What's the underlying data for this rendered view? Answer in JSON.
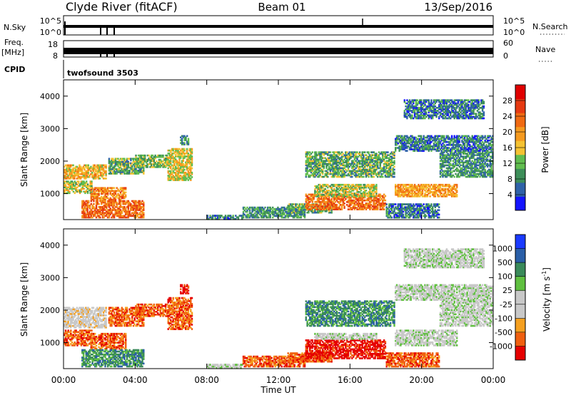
{
  "header": {
    "station": "Clyde River (fitACF)",
    "beam": "Beam 01",
    "date": "13/Sep/2016"
  },
  "colors": {
    "power_scale": [
      "#1414ff",
      "#2f62a8",
      "#3d8e59",
      "#61bd4f",
      "#f5c232",
      "#f59a1f",
      "#f06a12",
      "#e63a12",
      "#e00000"
    ],
    "velocity_scale": [
      "#e60000",
      "#f06010",
      "#f5a020",
      "#c8c8c8",
      "#c8c8c8",
      "#60c040",
      "#3a8a5a",
      "#2a5fa8",
      "#1a3aff"
    ]
  },
  "chart_data": [
    {
      "type": "line",
      "panel": "nsky-nsearch",
      "left_label": "N.Sky",
      "right_label": "N.Search",
      "left_ticks": [
        "10^5",
        "10^0"
      ],
      "right_ticks": [
        "10^5",
        "10^0"
      ]
    },
    {
      "type": "line",
      "panel": "freq-nave",
      "left_label": "Freq.",
      "left_unit": "[MHz]",
      "right_label": "Nave",
      "left_ticks": [
        "18",
        "8"
      ],
      "right_ticks": [
        "60",
        "0"
      ]
    },
    {
      "type": "table",
      "panel": "cpid",
      "label": "CPID",
      "value": "twofsound 3503"
    },
    {
      "type": "heatmap",
      "panel": "power",
      "ylabel": "Slant Range [km]",
      "ylim": [
        200,
        4500
      ],
      "yticks": [
        "1000",
        "2000",
        "3000",
        "4000"
      ],
      "xlim_hours": [
        0,
        24
      ],
      "colorbar_label": "Power [dB]",
      "colorbar_ticks": [
        "28",
        "24",
        "20",
        "16",
        "12",
        "8",
        "4"
      ],
      "clim": [
        0,
        32
      ],
      "echo_regions": [
        {
          "t": [
            0.0,
            2.4
          ],
          "r": [
            1450,
            1900
          ],
          "v": 18
        },
        {
          "t": [
            0.0,
            1.6
          ],
          "r": [
            1000,
            1400
          ],
          "v": 14
        },
        {
          "t": [
            1.5,
            3.5
          ],
          "r": [
            800,
            1200
          ],
          "v": 22
        },
        {
          "t": [
            1.0,
            4.5
          ],
          "r": [
            250,
            800
          ],
          "v": 24
        },
        {
          "t": [
            2.5,
            4.5
          ],
          "r": [
            1600,
            2100
          ],
          "v": 10
        },
        {
          "t": [
            4.0,
            5.8
          ],
          "r": [
            1800,
            2200
          ],
          "v": 12
        },
        {
          "t": [
            5.8,
            7.2
          ],
          "r": [
            1400,
            2400
          ],
          "v": 16
        },
        {
          "t": [
            6.5,
            7.0
          ],
          "r": [
            2500,
            2800
          ],
          "v": 8
        },
        {
          "t": [
            8.0,
            10.0
          ],
          "r": [
            200,
            350
          ],
          "v": 6
        },
        {
          "t": [
            10.0,
            13.5
          ],
          "r": [
            250,
            600
          ],
          "v": 8
        },
        {
          "t": [
            12.5,
            15.0
          ],
          "r": [
            400,
            700
          ],
          "v": 10
        },
        {
          "t": [
            13.5,
            18.0
          ],
          "r": [
            500,
            1000
          ],
          "v": 24
        },
        {
          "t": [
            14.0,
            17.5
          ],
          "r": [
            900,
            1300
          ],
          "v": 14
        },
        {
          "t": [
            13.5,
            18.5
          ],
          "r": [
            1500,
            2300
          ],
          "v": 10
        },
        {
          "t": [
            18.0,
            21.0
          ],
          "r": [
            250,
            700
          ],
          "v": 6
        },
        {
          "t": [
            18.5,
            22.0
          ],
          "r": [
            900,
            1300
          ],
          "v": 20
        },
        {
          "t": [
            21.0,
            24.0
          ],
          "r": [
            1500,
            2300
          ],
          "v": 8
        },
        {
          "t": [
            18.5,
            24.0
          ],
          "r": [
            2300,
            2800
          ],
          "v": 6
        },
        {
          "t": [
            19.0,
            23.5
          ],
          "r": [
            3300,
            3900
          ],
          "v": 6
        }
      ]
    },
    {
      "type": "heatmap",
      "panel": "velocity",
      "ylabel": "Slant Range [km]",
      "ylim": [
        200,
        4500
      ],
      "yticks": [
        "1000",
        "2000",
        "3000",
        "4000"
      ],
      "xlabel": "Time UT",
      "xticks": [
        "00:00",
        "04:00",
        "08:00",
        "12:00",
        "16:00",
        "20:00",
        "00:00"
      ],
      "colorbar_label": "Velocity",
      "colorbar_unit": "[m s",
      "colorbar_unit_exp": "-1",
      "colorbar_unit_end": "]",
      "colorbar_ticks": [
        "1000",
        "500",
        "100",
        "25",
        "-25",
        "-100",
        "-500",
        "-1000"
      ],
      "echo_regions": [
        {
          "t": [
            0.0,
            2.4
          ],
          "r": [
            1450,
            2100
          ],
          "v": -25,
          "c": "gray"
        },
        {
          "t": [
            0.0,
            1.6
          ],
          "r": [
            900,
            1400
          ],
          "v": -200
        },
        {
          "t": [
            1.5,
            3.5
          ],
          "r": [
            800,
            1300
          ],
          "v": -150
        },
        {
          "t": [
            1.0,
            4.5
          ],
          "r": [
            250,
            800
          ],
          "v": 100
        },
        {
          "t": [
            2.5,
            4.5
          ],
          "r": [
            1500,
            2100
          ],
          "v": -400
        },
        {
          "t": [
            4.0,
            5.8
          ],
          "r": [
            1800,
            2200
          ],
          "v": -300
        },
        {
          "t": [
            5.8,
            7.2
          ],
          "r": [
            1400,
            2400
          ],
          "v": -400
        },
        {
          "t": [
            6.5,
            7.0
          ],
          "r": [
            2500,
            2800
          ],
          "v": -600
        },
        {
          "t": [
            8.0,
            10.0
          ],
          "r": [
            200,
            350
          ],
          "v": 0
        },
        {
          "t": [
            10.0,
            13.5
          ],
          "r": [
            250,
            600
          ],
          "v": -200
        },
        {
          "t": [
            12.5,
            15.0
          ],
          "r": [
            400,
            700
          ],
          "v": -150
        },
        {
          "t": [
            13.5,
            18.0
          ],
          "r": [
            500,
            1100
          ],
          "v": -500
        },
        {
          "t": [
            14.0,
            17.5
          ],
          "r": [
            1100,
            1300
          ],
          "v": 0
        },
        {
          "t": [
            13.5,
            18.5
          ],
          "r": [
            1500,
            2300
          ],
          "v": 200
        },
        {
          "t": [
            18.0,
            21.0
          ],
          "r": [
            250,
            700
          ],
          "v": -100
        },
        {
          "t": [
            18.5,
            22.0
          ],
          "r": [
            900,
            1400
          ],
          "v": 0
        },
        {
          "t": [
            21.0,
            24.0
          ],
          "r": [
            1500,
            2300
          ],
          "v": 0
        },
        {
          "t": [
            18.5,
            24.0
          ],
          "r": [
            2300,
            2800
          ],
          "v": 0
        },
        {
          "t": [
            19.0,
            23.5
          ],
          "r": [
            3300,
            3900
          ],
          "v": 0
        }
      ]
    }
  ]
}
